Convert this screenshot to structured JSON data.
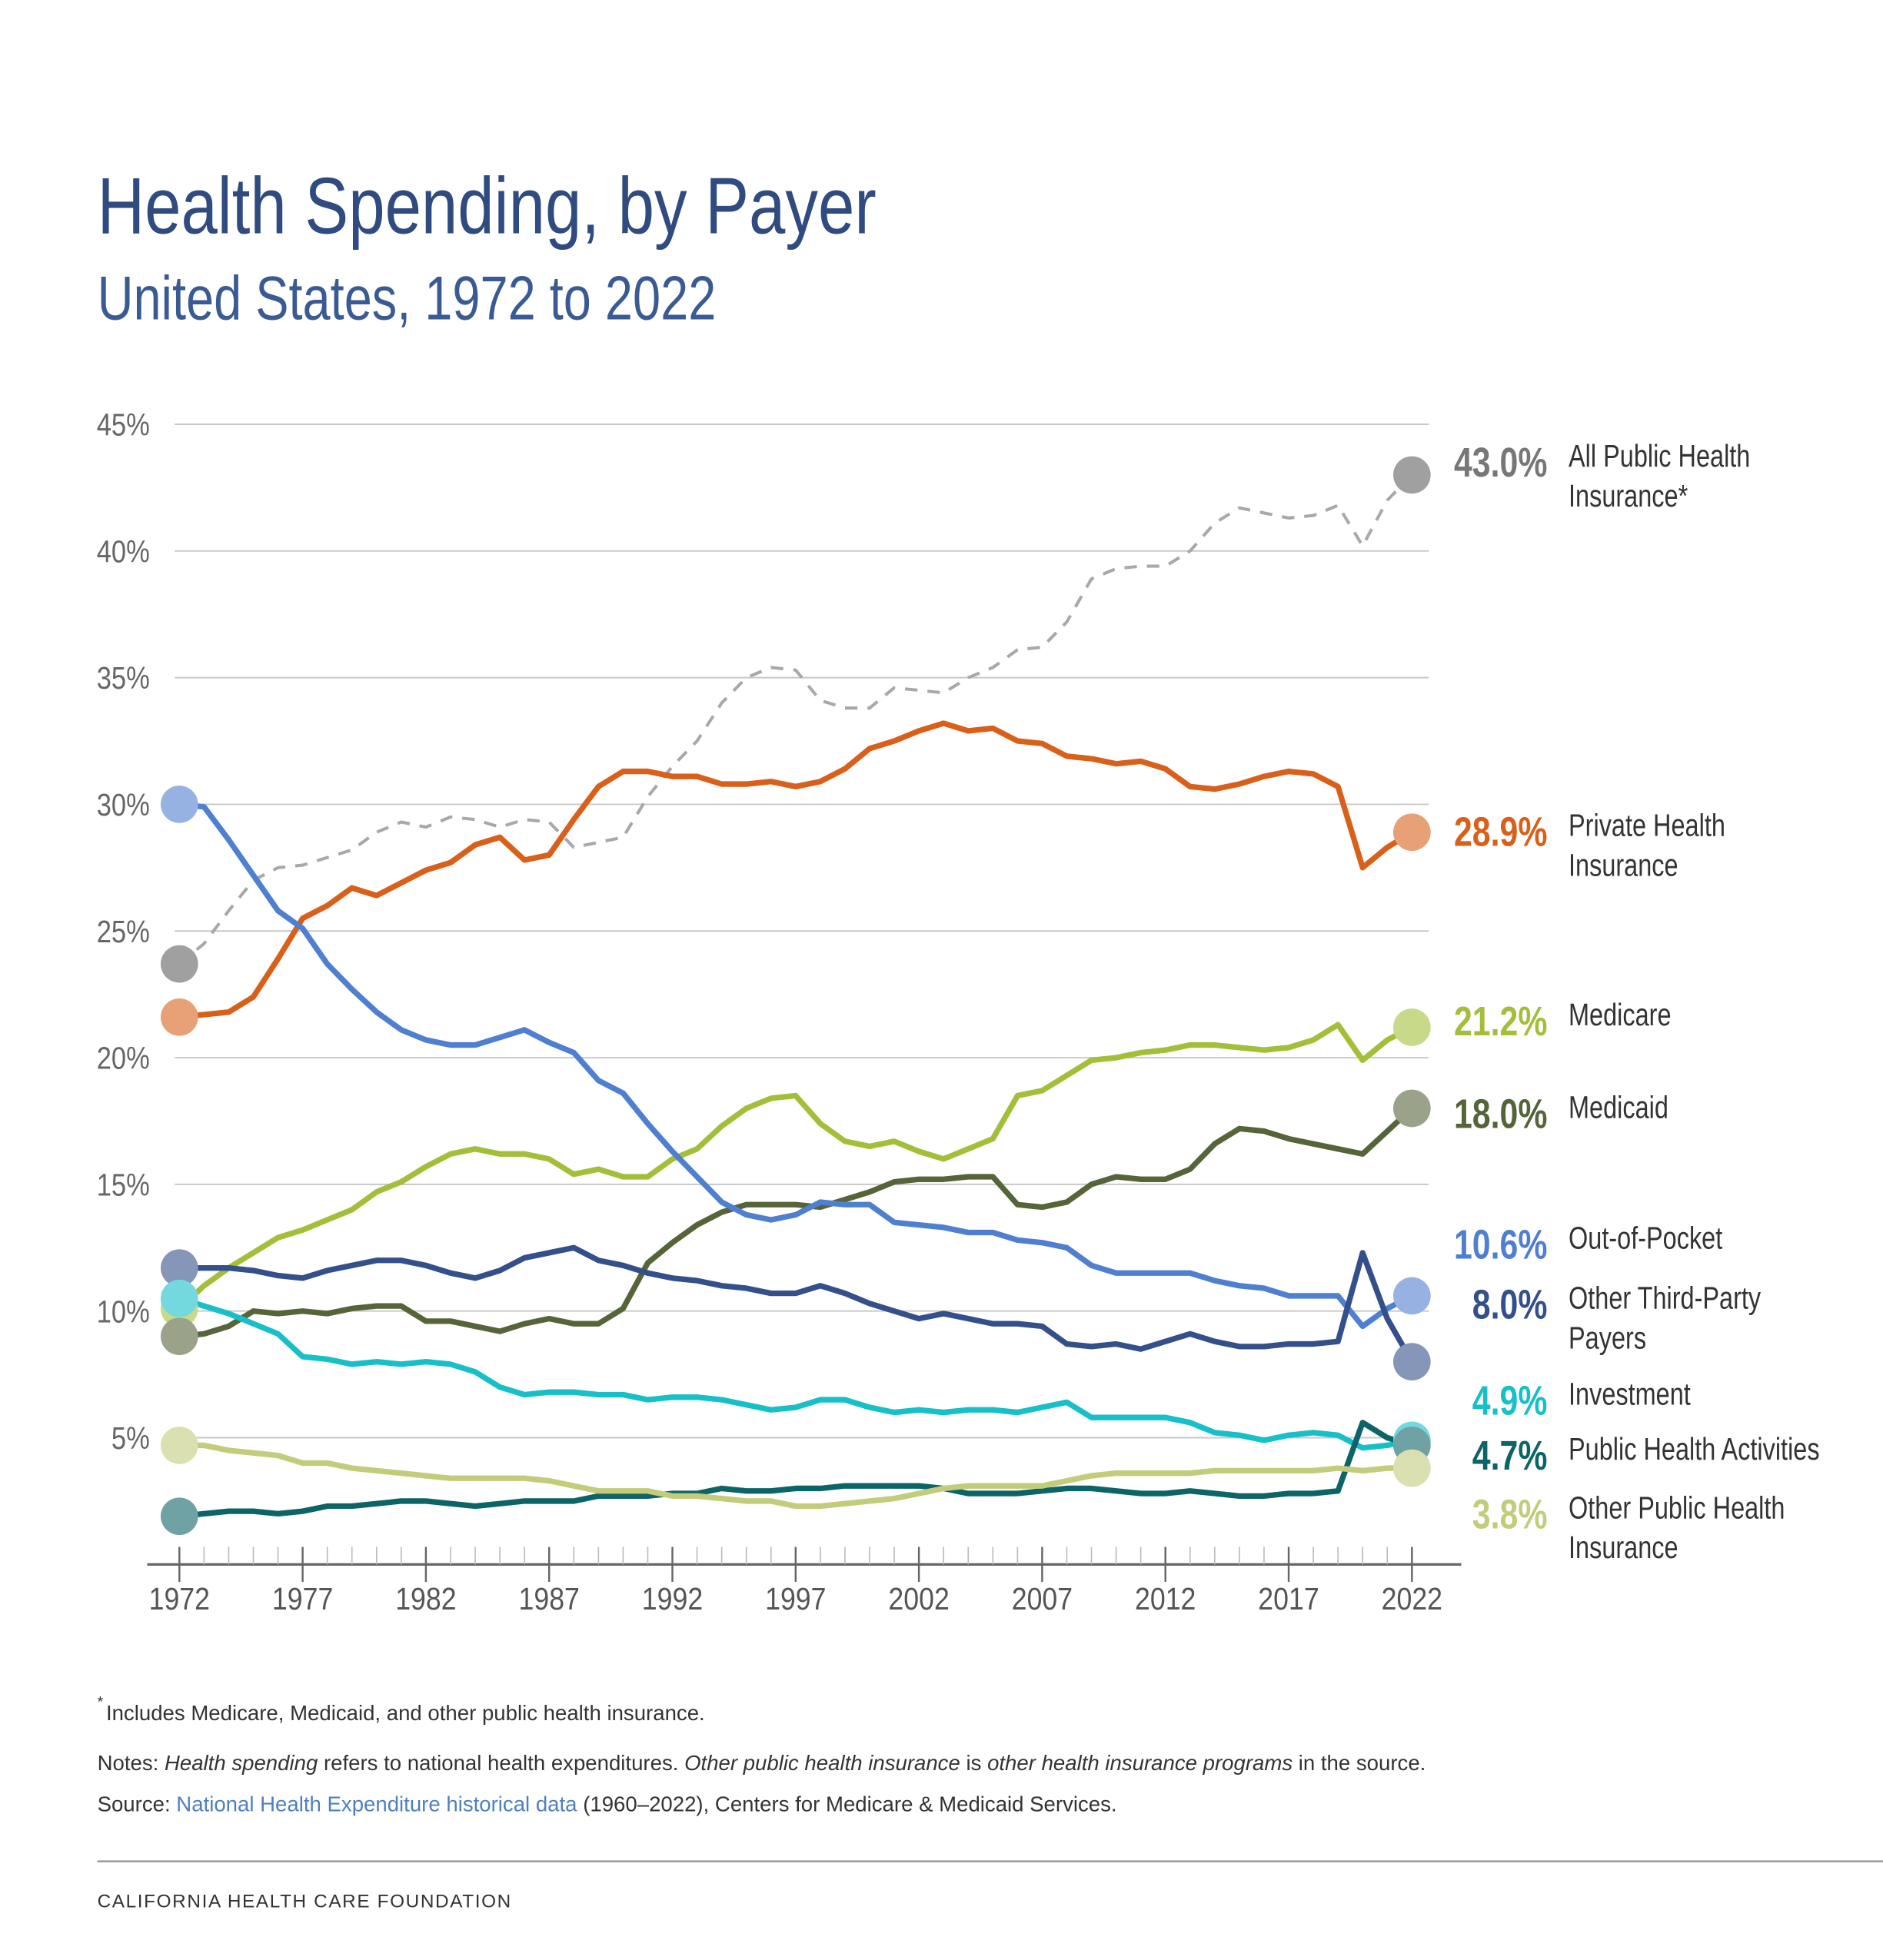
{
  "chart_data": {
    "type": "line",
    "title": "Health Spending, by Payer",
    "subtitle": "United States, 1972 to 2022",
    "x": [
      1972,
      1973,
      1974,
      1975,
      1976,
      1977,
      1978,
      1979,
      1980,
      1981,
      1982,
      1983,
      1984,
      1985,
      1986,
      1987,
      1988,
      1989,
      1990,
      1991,
      1992,
      1993,
      1994,
      1995,
      1996,
      1997,
      1998,
      1999,
      2000,
      2001,
      2002,
      2003,
      2004,
      2005,
      2006,
      2007,
      2008,
      2009,
      2010,
      2011,
      2012,
      2013,
      2014,
      2015,
      2016,
      2017,
      2018,
      2019,
      2020,
      2021,
      2022
    ],
    "xlim": [
      1971,
      2024
    ],
    "xticks": [
      1972,
      1977,
      1982,
      1987,
      1992,
      1997,
      2002,
      2007,
      2012,
      2017,
      2022
    ],
    "ylim": [
      0,
      45
    ],
    "yticks": [
      {
        "value": 5,
        "label": "5%"
      },
      {
        "value": 10,
        "label": "10%"
      },
      {
        "value": 15,
        "label": "15%"
      },
      {
        "value": 20,
        "label": "20%"
      },
      {
        "value": 25,
        "label": "25%"
      },
      {
        "value": 30,
        "label": "30%"
      },
      {
        "value": 35,
        "label": "35%"
      },
      {
        "value": 40,
        "label": "40%"
      },
      {
        "value": 45,
        "label": "45%"
      }
    ],
    "grid": true,
    "series": [
      {
        "name": "All Public Health Insurance*",
        "color": "#a8a8a8",
        "dashed": true,
        "values": [
          23.7,
          24.5,
          25.8,
          27.0,
          27.5,
          27.6,
          27.9,
          28.2,
          28.9,
          29.3,
          29.1,
          29.5,
          29.4,
          29.1,
          29.4,
          29.3,
          28.3,
          28.5,
          28.7,
          30.3,
          31.5,
          32.5,
          34.0,
          35.0,
          35.4,
          35.3,
          34.1,
          33.8,
          33.8,
          34.6,
          34.5,
          34.4,
          35.0,
          35.4,
          36.1,
          36.2,
          37.2,
          38.9,
          39.3,
          39.4,
          39.4,
          40.0,
          41.1,
          41.7,
          41.5,
          41.3,
          41.4,
          41.8,
          40.2,
          42.0,
          43.0
        ],
        "value_labels": [
          null,
          null,
          null,
          null,
          null,
          null,
          null,
          null,
          null,
          null,
          null,
          null,
          null,
          null,
          null,
          null,
          null,
          null,
          null,
          null,
          null,
          null,
          null,
          null,
          null,
          null,
          null,
          null,
          null,
          null,
          null,
          null,
          null,
          null,
          null,
          null,
          null,
          null,
          null,
          null,
          null,
          null,
          null,
          null,
          null,
          null,
          null,
          null,
          null,
          null,
          "43.0%"
        ]
      },
      {
        "name": "Private Health Insurance",
        "color": "#d9601a",
        "values": [
          21.6,
          21.7,
          21.8,
          22.4,
          23.9,
          25.5,
          26.0,
          26.7,
          26.4,
          26.9,
          27.4,
          27.7,
          28.4,
          28.7,
          27.8,
          28.0,
          29.4,
          30.7,
          31.3,
          31.3,
          31.1,
          31.1,
          30.8,
          30.8,
          30.9,
          30.7,
          30.9,
          31.4,
          32.2,
          32.5,
          32.9,
          33.2,
          32.9,
          33.0,
          32.5,
          32.4,
          31.9,
          31.8,
          31.6,
          31.7,
          31.4,
          30.7,
          30.6,
          30.8,
          31.1,
          31.3,
          31.2,
          30.7,
          27.5,
          28.3,
          28.9
        ],
        "value_labels": [
          null,
          null,
          null,
          null,
          null,
          null,
          null,
          null,
          null,
          null,
          null,
          null,
          null,
          null,
          null,
          null,
          null,
          null,
          null,
          null,
          null,
          null,
          null,
          null,
          null,
          null,
          null,
          null,
          null,
          null,
          null,
          null,
          null,
          null,
          null,
          null,
          null,
          null,
          null,
          null,
          null,
          null,
          null,
          null,
          null,
          null,
          null,
          null,
          null,
          null,
          "28.9%"
        ]
      },
      {
        "name": "Medicare",
        "color": "#a3bf3a",
        "values": [
          10.1,
          11.0,
          11.7,
          12.3,
          12.9,
          13.2,
          13.6,
          14.0,
          14.7,
          15.1,
          15.7,
          16.2,
          16.4,
          16.2,
          16.2,
          16.0,
          15.4,
          15.6,
          15.3,
          15.3,
          16.0,
          16.4,
          17.3,
          18.0,
          18.4,
          18.5,
          17.4,
          16.7,
          16.5,
          16.7,
          16.3,
          16.0,
          16.4,
          16.8,
          18.5,
          18.7,
          19.3,
          19.9,
          20.0,
          20.2,
          20.3,
          20.5,
          20.5,
          20.4,
          20.3,
          20.4,
          20.7,
          21.3,
          19.9,
          20.7,
          21.2
        ],
        "value_labels": [
          null,
          null,
          null,
          null,
          null,
          null,
          null,
          null,
          null,
          null,
          null,
          null,
          null,
          null,
          null,
          null,
          null,
          null,
          null,
          null,
          null,
          null,
          null,
          null,
          null,
          null,
          null,
          null,
          null,
          null,
          null,
          null,
          null,
          null,
          null,
          null,
          null,
          null,
          null,
          null,
          null,
          null,
          null,
          null,
          null,
          null,
          null,
          null,
          null,
          null,
          "21.2%"
        ]
      },
      {
        "name": "Medicaid",
        "color": "#56643a",
        "values": [
          9.0,
          9.1,
          9.4,
          10.0,
          9.9,
          10.0,
          9.9,
          10.1,
          10.2,
          10.2,
          9.6,
          9.6,
          9.4,
          9.2,
          9.5,
          9.7,
          9.5,
          9.5,
          10.1,
          11.9,
          12.7,
          13.4,
          13.9,
          14.2,
          14.2,
          14.2,
          14.1,
          14.4,
          14.7,
          15.1,
          15.2,
          15.2,
          15.3,
          15.3,
          14.2,
          14.1,
          14.3,
          15.0,
          15.3,
          15.2,
          15.2,
          15.6,
          16.6,
          17.2,
          17.1,
          16.8,
          16.6,
          16.4,
          16.2,
          17.1,
          18.0
        ],
        "value_labels": [
          null,
          null,
          null,
          null,
          null,
          null,
          null,
          null,
          null,
          null,
          null,
          null,
          null,
          null,
          null,
          null,
          null,
          null,
          null,
          null,
          null,
          null,
          null,
          null,
          null,
          null,
          null,
          null,
          null,
          null,
          null,
          null,
          null,
          null,
          null,
          null,
          null,
          null,
          null,
          null,
          null,
          null,
          null,
          null,
          null,
          null,
          null,
          null,
          null,
          null,
          "18.0%"
        ]
      },
      {
        "name": "Out-of-Pocket",
        "color": "#4f7fd0",
        "values": [
          30.0,
          29.9,
          28.6,
          27.2,
          25.8,
          25.1,
          23.7,
          22.7,
          21.8,
          21.1,
          20.7,
          20.5,
          20.5,
          20.8,
          21.1,
          20.6,
          20.2,
          19.1,
          18.6,
          17.4,
          16.3,
          15.3,
          14.3,
          13.8,
          13.6,
          13.8,
          14.3,
          14.2,
          14.2,
          13.5,
          13.4,
          13.3,
          13.1,
          13.1,
          12.8,
          12.7,
          12.5,
          11.8,
          11.5,
          11.5,
          11.5,
          11.5,
          11.2,
          11.0,
          10.9,
          10.6,
          10.6,
          10.6,
          9.4,
          10.1,
          10.6
        ],
        "value_labels": [
          null,
          null,
          null,
          null,
          null,
          null,
          null,
          null,
          null,
          null,
          null,
          null,
          null,
          null,
          null,
          null,
          null,
          null,
          null,
          null,
          null,
          null,
          null,
          null,
          null,
          null,
          null,
          null,
          null,
          null,
          null,
          null,
          null,
          null,
          null,
          null,
          null,
          null,
          null,
          null,
          null,
          null,
          null,
          null,
          null,
          null,
          null,
          null,
          null,
          null,
          "10.6%"
        ]
      },
      {
        "name": "Other Third-Party Payers",
        "color": "#34508a",
        "values": [
          11.7,
          11.7,
          11.7,
          11.6,
          11.4,
          11.3,
          11.6,
          11.8,
          12.0,
          12.0,
          11.8,
          11.5,
          11.3,
          11.6,
          12.1,
          12.3,
          12.5,
          12.0,
          11.8,
          11.5,
          11.3,
          11.2,
          11.0,
          10.9,
          10.7,
          10.7,
          11.0,
          10.7,
          10.3,
          10.0,
          9.7,
          9.9,
          9.7,
          9.5,
          9.5,
          9.4,
          8.7,
          8.6,
          8.7,
          8.5,
          8.8,
          9.1,
          8.8,
          8.6,
          8.6,
          8.7,
          8.7,
          8.8,
          12.3,
          9.7,
          8.0
        ],
        "value_labels": [
          null,
          null,
          null,
          null,
          null,
          null,
          null,
          null,
          null,
          null,
          null,
          null,
          null,
          null,
          null,
          null,
          null,
          null,
          null,
          null,
          null,
          null,
          null,
          null,
          null,
          null,
          null,
          null,
          null,
          null,
          null,
          null,
          null,
          null,
          null,
          null,
          null,
          null,
          null,
          null,
          null,
          null,
          null,
          null,
          null,
          null,
          null,
          null,
          null,
          null,
          "8.0%"
        ]
      },
      {
        "name": "Investment",
        "color": "#17c0c8",
        "values": [
          10.5,
          10.2,
          9.9,
          9.5,
          9.1,
          8.2,
          8.1,
          7.9,
          8.0,
          7.9,
          8.0,
          7.9,
          7.6,
          7.0,
          6.7,
          6.8,
          6.8,
          6.7,
          6.7,
          6.5,
          6.6,
          6.6,
          6.5,
          6.3,
          6.1,
          6.2,
          6.5,
          6.5,
          6.2,
          6.0,
          6.1,
          6.0,
          6.1,
          6.1,
          6.0,
          6.2,
          6.4,
          5.8,
          5.8,
          5.8,
          5.8,
          5.6,
          5.2,
          5.1,
          4.9,
          5.1,
          5.2,
          5.1,
          4.6,
          4.7,
          4.9
        ],
        "value_labels": [
          null,
          null,
          null,
          null,
          null,
          null,
          null,
          null,
          null,
          null,
          null,
          null,
          null,
          null,
          null,
          null,
          null,
          null,
          null,
          null,
          null,
          null,
          null,
          null,
          null,
          null,
          null,
          null,
          null,
          null,
          null,
          null,
          null,
          null,
          null,
          null,
          null,
          null,
          null,
          null,
          null,
          null,
          null,
          null,
          null,
          null,
          null,
          null,
          null,
          null,
          "4.9%"
        ]
      },
      {
        "name": "Public Health Activities",
        "color": "#0d6467",
        "values": [
          1.9,
          2.0,
          2.1,
          2.1,
          2.0,
          2.1,
          2.3,
          2.3,
          2.4,
          2.5,
          2.5,
          2.4,
          2.3,
          2.4,
          2.5,
          2.5,
          2.5,
          2.7,
          2.7,
          2.7,
          2.8,
          2.8,
          3.0,
          2.9,
          2.9,
          3.0,
          3.0,
          3.1,
          3.1,
          3.1,
          3.1,
          3.0,
          2.8,
          2.8,
          2.8,
          2.9,
          3.0,
          3.0,
          2.9,
          2.8,
          2.8,
          2.9,
          2.8,
          2.7,
          2.7,
          2.8,
          2.8,
          2.9,
          5.6,
          5.0,
          4.7
        ],
        "value_labels": [
          null,
          null,
          null,
          null,
          null,
          null,
          null,
          null,
          null,
          null,
          null,
          null,
          null,
          null,
          null,
          null,
          null,
          null,
          null,
          null,
          null,
          null,
          null,
          null,
          null,
          null,
          null,
          null,
          null,
          null,
          null,
          null,
          null,
          null,
          null,
          null,
          null,
          null,
          null,
          null,
          null,
          null,
          null,
          null,
          null,
          null,
          null,
          null,
          null,
          null,
          "4.7%"
        ]
      },
      {
        "name": "Other Public Health Insurance",
        "color": "#c2cc7a",
        "values": [
          4.7,
          4.7,
          4.5,
          4.4,
          4.3,
          4.0,
          4.0,
          3.8,
          3.7,
          3.6,
          3.5,
          3.4,
          3.4,
          3.4,
          3.4,
          3.3,
          3.1,
          2.9,
          2.9,
          2.9,
          2.7,
          2.7,
          2.6,
          2.5,
          2.5,
          2.3,
          2.3,
          2.4,
          2.5,
          2.6,
          2.8,
          3.0,
          3.1,
          3.1,
          3.1,
          3.1,
          3.3,
          3.5,
          3.6,
          3.6,
          3.6,
          3.6,
          3.7,
          3.7,
          3.7,
          3.7,
          3.7,
          3.8,
          3.7,
          3.8,
          3.8
        ],
        "value_labels": [
          null,
          null,
          null,
          null,
          null,
          null,
          null,
          null,
          null,
          null,
          null,
          null,
          null,
          null,
          null,
          null,
          null,
          null,
          null,
          null,
          null,
          null,
          null,
          null,
          null,
          null,
          null,
          null,
          null,
          null,
          null,
          null,
          null,
          null,
          null,
          null,
          null,
          null,
          null,
          null,
          null,
          null,
          null,
          null,
          null,
          null,
          null,
          null,
          null,
          null,
          "3.8%"
        ]
      }
    ]
  },
  "footnote": {
    "marker": "*",
    "text": "Includes Medicare, Medicaid, and other public health insurance."
  },
  "notes": [
    "Notes: ",
    "Health spending",
    " refers to national health expenditures. ",
    "Other public health insurance",
    " is ",
    "other health insurance programs",
    " in the source."
  ],
  "source": [
    "Source: ",
    "National Health Expenditure historical data",
    " (1960–2022), Centers for Medicare & Medicaid Services."
  ],
  "footer": "CALIFORNIA HEALTH CARE FOUNDATION"
}
